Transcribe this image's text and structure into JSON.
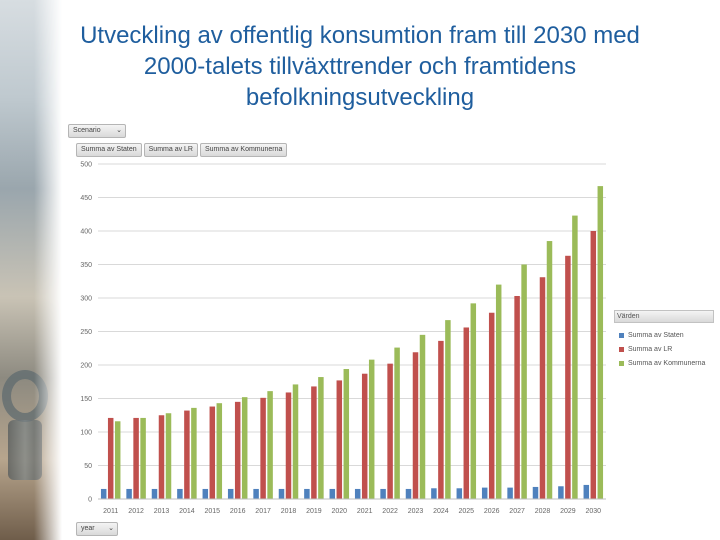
{
  "title": "Utveckling av offentlig konsumtion fram till 2030 med 2000-talets tillväxttrender och framtidens befolkningsutveckling",
  "pivot": {
    "scenario_label": "Scenario",
    "year_label": "year",
    "legend_title": "Värden"
  },
  "colors": {
    "staten": "#4f81bd",
    "lr": "#c0504d",
    "kommunerna": "#9bbb59",
    "grid": "#d9d9d9",
    "axis_text": "#666666"
  },
  "chart_data": {
    "type": "bar",
    "title": "",
    "xlabel": "",
    "ylabel": "",
    "ylim": [
      0,
      500
    ],
    "yticks": [
      0,
      50,
      100,
      150,
      200,
      250,
      300,
      350,
      400,
      450,
      500
    ],
    "grid": true,
    "legend_position": "right",
    "categories": [
      "2011",
      "2012",
      "2013",
      "2014",
      "2015",
      "2016",
      "2017",
      "2018",
      "2019",
      "2020",
      "2021",
      "2022",
      "2023",
      "2024",
      "2025",
      "2026",
      "2027",
      "2028",
      "2029",
      "2030"
    ],
    "series": [
      {
        "name": "Summa av Staten",
        "color": "#4f81bd",
        "values": [
          15,
          15,
          15,
          15,
          15,
          15,
          15,
          15,
          15,
          15,
          15,
          15,
          15,
          16,
          16,
          17,
          17,
          18,
          19,
          21
        ]
      },
      {
        "name": "Summa av LR",
        "color": "#c0504d",
        "values": [
          121,
          121,
          125,
          132,
          138,
          145,
          151,
          159,
          168,
          177,
          187,
          202,
          219,
          236,
          256,
          278,
          303,
          331,
          363,
          400
        ]
      },
      {
        "name": "Summa av Kommunerna",
        "color": "#9bbb59",
        "values": [
          116,
          121,
          128,
          136,
          143,
          152,
          161,
          171,
          182,
          194,
          208,
          226,
          245,
          267,
          292,
          320,
          350,
          385,
          423,
          467
        ]
      }
    ]
  }
}
